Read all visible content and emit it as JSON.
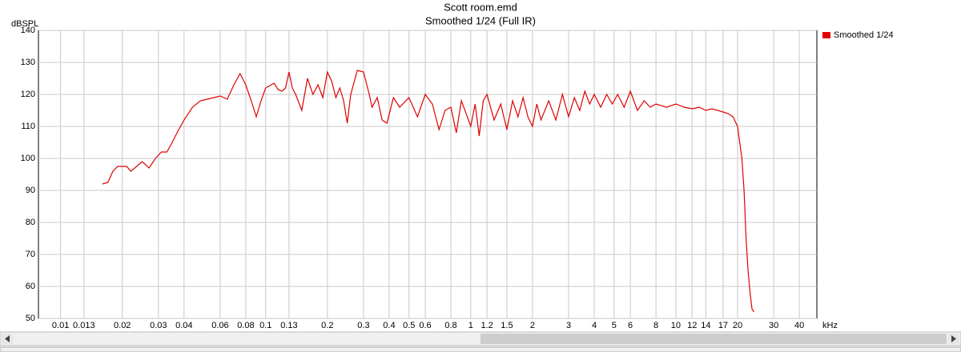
{
  "chart_data": {
    "type": "line",
    "title": "Scott room.emd",
    "subtitle": "Smoothed 1/24 (Full IR)",
    "y_label": "dBSPL",
    "x_label": "kHz",
    "log_x": true,
    "grid": true,
    "legend": "right",
    "xlim": [
      0.0078,
      48.7
    ],
    "ylim": [
      50,
      140
    ],
    "xticks": [
      0.01,
      0.013,
      0.02,
      0.03,
      0.04,
      0.06,
      0.08,
      0.1,
      0.13,
      0.2,
      0.3,
      0.4,
      0.5,
      0.6,
      0.8,
      1,
      1.2,
      1.5,
      2,
      3,
      4,
      5,
      6,
      8,
      10,
      12,
      14,
      17,
      20,
      30,
      40
    ],
    "yticks": [
      50,
      60,
      70,
      80,
      90,
      100,
      110,
      120,
      130,
      140
    ],
    "x": [
      0.016,
      0.017,
      0.018,
      0.019,
      0.021,
      0.022,
      0.023,
      0.025,
      0.026,
      0.027,
      0.029,
      0.031,
      0.033,
      0.035,
      0.037,
      0.04,
      0.044,
      0.048,
      0.052,
      0.056,
      0.06,
      0.065,
      0.07,
      0.075,
      0.08,
      0.085,
      0.09,
      0.095,
      0.1,
      0.11,
      0.115,
      0.12,
      0.125,
      0.13,
      0.135,
      0.14,
      0.15,
      0.16,
      0.17,
      0.18,
      0.19,
      0.2,
      0.21,
      0.22,
      0.23,
      0.24,
      0.25,
      0.26,
      0.28,
      0.3,
      0.32,
      0.33,
      0.35,
      0.37,
      0.39,
      0.42,
      0.45,
      0.5,
      0.55,
      0.6,
      0.65,
      0.7,
      0.75,
      0.8,
      0.85,
      0.9,
      0.95,
      1.0,
      1.05,
      1.1,
      1.15,
      1.2,
      1.3,
      1.4,
      1.5,
      1.6,
      1.7,
      1.8,
      1.9,
      2.0,
      2.1,
      2.2,
      2.4,
      2.6,
      2.8,
      3.0,
      3.2,
      3.4,
      3.6,
      3.8,
      4.0,
      4.3,
      4.6,
      4.9,
      5.2,
      5.6,
      6.0,
      6.5,
      7.0,
      7.5,
      8,
      9,
      10,
      11,
      12,
      13,
      14,
      15,
      16,
      17,
      18,
      19,
      20,
      21,
      21.5,
      22,
      22.5,
      23,
      23.5,
      24
    ],
    "series": [
      {
        "name": "Smoothed 1/24",
        "color": "#e00000",
        "values": [
          92,
          92.5,
          96,
          97.5,
          97.5,
          96,
          97,
          99,
          98,
          97,
          100,
          102,
          102,
          105,
          108,
          112,
          116,
          118,
          118.5,
          119,
          119.5,
          118.5,
          123,
          126.5,
          123,
          118,
          113,
          118,
          122,
          123.5,
          121.5,
          121,
          122,
          127,
          122,
          120,
          115,
          125,
          120,
          123,
          119,
          127,
          124,
          119,
          122,
          118,
          111,
          120,
          127.5,
          127,
          120,
          116,
          119,
          112,
          111,
          119,
          116,
          119,
          113,
          120,
          117,
          109,
          115,
          116,
          108,
          118,
          114,
          110,
          117,
          107,
          118,
          120,
          112,
          117,
          109,
          118,
          113,
          119,
          113,
          110,
          117,
          112,
          118,
          112,
          120,
          113,
          119,
          115,
          121,
          117,
          120,
          116,
          120,
          117,
          120,
          116,
          121,
          115,
          118,
          116,
          117,
          116,
          117,
          116,
          115.5,
          116,
          115,
          115.5,
          115,
          114.5,
          114,
          113,
          110,
          100,
          90,
          75,
          65,
          58,
          53,
          52
        ]
      }
    ]
  }
}
